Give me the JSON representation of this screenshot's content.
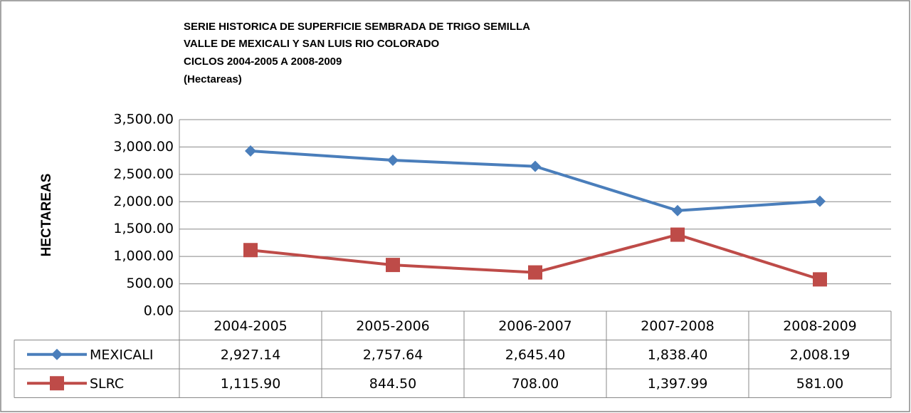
{
  "chart_data": {
    "type": "line",
    "title": [
      "SERIE HISTORICA DE SUPERFICIE SEMBRADA DE TRIGO SEMILLA",
      "VALLE DE MEXICALI Y SAN LUIS RIO COLORADO",
      "CICLOS 2004-2005 A 2008-2009",
      "(Hectareas)"
    ],
    "y_label": "HECTAREAS",
    "categories": [
      "2004-2005",
      "2005-2006",
      "2006-2007",
      "2007-2008",
      "2008-2009"
    ],
    "series": [
      {
        "name": "MEXICALI",
        "color": "#4a7ebb",
        "marker": "diamond",
        "values": [
          2927.14,
          2757.64,
          2645.4,
          1838.4,
          2008.19
        ],
        "value_labels": [
          "2,927.14",
          "2,757.64",
          "2,645.40",
          "1,838.40",
          "2,008.19"
        ]
      },
      {
        "name": "SLRC",
        "color": "#be4b48",
        "marker": "square",
        "values": [
          1115.9,
          844.5,
          708.0,
          1397.99,
          581.0
        ],
        "value_labels": [
          "1,115.90",
          "844.50",
          "708.00",
          "1,397.99",
          "581.00"
        ]
      }
    ],
    "ylim": [
      0,
      3500
    ],
    "yticks": [
      {
        "value": 0,
        "label": "0.00"
      },
      {
        "value": 500,
        "label": "500.00"
      },
      {
        "value": 1000,
        "label": "1,000.00"
      },
      {
        "value": 1500,
        "label": "1,500.00"
      },
      {
        "value": 2000,
        "label": "2,000.00"
      },
      {
        "value": 2500,
        "label": "2,500.00"
      },
      {
        "value": 3000,
        "label": "3,000.00"
      },
      {
        "value": 3500,
        "label": "3,500.00"
      }
    ],
    "grid": true,
    "data_table": true
  }
}
